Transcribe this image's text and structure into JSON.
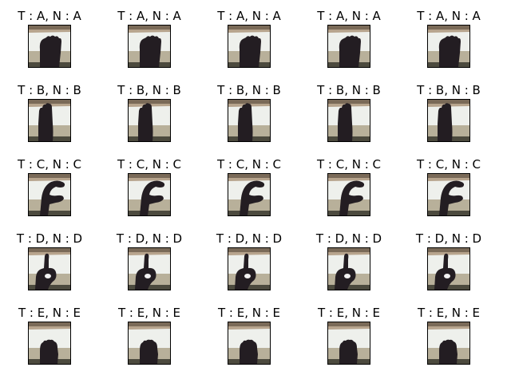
{
  "figure": {
    "rows": [
      {
        "letter": "A",
        "cells": [
          {
            "title": "T : A, N : A",
            "image": "hand-sign-A-photo"
          },
          {
            "title": "T : A, N : A",
            "image": "hand-sign-A-photo"
          },
          {
            "title": "T : A, N : A",
            "image": "hand-sign-A-photo"
          },
          {
            "title": "T : A, N : A",
            "image": "hand-sign-A-photo"
          },
          {
            "title": "T : A, N : A",
            "image": "hand-sign-A-photo"
          }
        ]
      },
      {
        "letter": "B",
        "cells": [
          {
            "title": "T : B, N : B",
            "image": "hand-sign-B-photo"
          },
          {
            "title": "T : B, N : B",
            "image": "hand-sign-B-photo"
          },
          {
            "title": "T : B, N : B",
            "image": "hand-sign-B-photo"
          },
          {
            "title": "T : B, N : B",
            "image": "hand-sign-B-photo"
          },
          {
            "title": "T : B, N : B",
            "image": "hand-sign-B-photo"
          }
        ]
      },
      {
        "letter": "C",
        "cells": [
          {
            "title": "T : C, N : C",
            "image": "hand-sign-C-photo"
          },
          {
            "title": "T : C, N : C",
            "image": "hand-sign-C-photo"
          },
          {
            "title": "T : C, N : C",
            "image": "hand-sign-C-photo"
          },
          {
            "title": "T : C, N : C",
            "image": "hand-sign-C-photo"
          },
          {
            "title": "T : C, N : C",
            "image": "hand-sign-C-photo"
          }
        ]
      },
      {
        "letter": "D",
        "cells": [
          {
            "title": "T : D, N : D",
            "image": "hand-sign-D-photo"
          },
          {
            "title": "T : D, N : D",
            "image": "hand-sign-D-photo"
          },
          {
            "title": "T : D, N : D",
            "image": "hand-sign-D-photo"
          },
          {
            "title": "T : D, N : D",
            "image": "hand-sign-D-photo"
          },
          {
            "title": "T : D, N : D",
            "image": "hand-sign-D-photo"
          }
        ]
      },
      {
        "letter": "E",
        "cells": [
          {
            "title": "T : E, N : E",
            "image": "hand-sign-E-photo"
          },
          {
            "title": "T : E, N : E",
            "image": "hand-sign-E-photo"
          },
          {
            "title": "T : E, N : E",
            "image": "hand-sign-E-photo"
          },
          {
            "title": "T : E, N : E",
            "image": "hand-sign-E-photo"
          },
          {
            "title": "T : E, N : E",
            "image": "hand-sign-E-photo"
          }
        ]
      }
    ]
  },
  "colors": {
    "wall": "#eef0ec",
    "shelf": "#7a6a58",
    "table": "#b8b09a",
    "hand": "#231d22",
    "frame": "#000000"
  }
}
